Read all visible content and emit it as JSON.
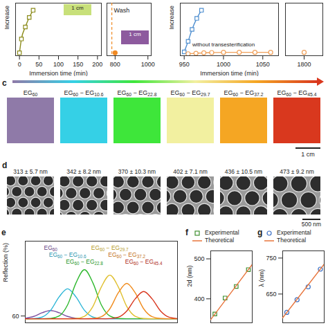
{
  "chart_data": [
    {
      "type": "line",
      "marker": "square",
      "color": "#8c8c1c",
      "ylabel": "Increase",
      "xlabel": "Immersion time (min)",
      "x": [
        0,
        5,
        15,
        25,
        35
      ],
      "values": [
        0.06,
        0.35,
        0.6,
        0.8,
        0.95
      ],
      "xlim": [
        -10,
        210
      ],
      "xticks": [
        0,
        50,
        100,
        150,
        200
      ],
      "ylim": [
        0,
        1.1
      ],
      "tick_labels": "x",
      "annotations": [
        "1 cm"
      ]
    },
    {
      "type": "scatter",
      "marker": "circle",
      "color": "#f08a24",
      "x": [
        800
      ],
      "values": [
        0.06
      ],
      "xlim": [
        750,
        1020
      ],
      "xticks": [
        800,
        1000
      ],
      "ylim": [
        0,
        1.1
      ],
      "tick_labels": "x",
      "wash": {
        "x": 780,
        "label": "Wash"
      },
      "annotations": [
        "1 cm"
      ]
    },
    {
      "type": "line",
      "ylabel": "Increase",
      "xlabel": "Immersion time (min)",
      "xlim": [
        945,
        1070
      ],
      "xticks": [
        950,
        1000,
        1050
      ],
      "ylim": [
        0,
        1.1
      ],
      "tick_labels": "x",
      "series": [
        {
          "color": "#4f8fd0",
          "marker": "square",
          "x": [
            950,
            955,
            960,
            966,
            972
          ],
          "values": [
            0.08,
            0.3,
            0.55,
            0.78,
            0.95
          ]
        },
        {
          "name": "without transesterification",
          "color": "#f0a05a",
          "marker": "circle",
          "x": [
            955,
            965,
            975,
            985,
            1000,
            1020,
            1040,
            1060
          ],
          "values": [
            0.04,
            0.05,
            0.06,
            0.065,
            0.07,
            0.07,
            0.07,
            0.07
          ]
        }
      ]
    },
    {
      "type": "scatter",
      "marker": "circle",
      "color": "#f0a05a",
      "x": [
        1800
      ],
      "values": [
        0.07
      ],
      "xlim": [
        1760,
        1840
      ],
      "xticks": [
        1800
      ],
      "ylim": [
        0,
        1.1
      ],
      "tick_labels": "x"
    },
    {
      "panel": "e",
      "type": "line",
      "ylabel": "Reflection (%)",
      "xlim": [
        380,
        740
      ],
      "ylim": [
        55,
        115
      ],
      "yticks": [
        60
      ],
      "tick_labels": "y",
      "x": [
        380,
        400,
        420,
        440,
        460,
        480,
        500,
        520,
        540,
        560,
        580,
        600,
        620,
        640,
        660,
        680,
        700,
        720,
        740
      ],
      "series": [
        {
          "name": "EG60",
          "color": "#7b4fa0",
          "values": [
            58.3,
            59.7,
            62.4,
            64,
            62.4,
            59.7,
            58.3,
            58,
            58,
            58,
            58,
            58,
            58,
            58,
            58,
            58,
            58,
            58,
            58
          ]
        },
        {
          "name": "EG60 − EG10.6",
          "color": "#2bb5d6",
          "values": [
            58,
            58.1,
            59.2,
            64.2,
            74,
            80,
            74,
            64.2,
            59.2,
            58.1,
            58,
            58,
            58,
            58,
            58,
            58,
            58,
            58,
            58
          ]
        },
        {
          "name": "EG60 − EG22.8",
          "color": "#2eb82e",
          "values": [
            58,
            58,
            58,
            58.2,
            60,
            68.1,
            84.3,
            94,
            84.3,
            68.1,
            60,
            58.2,
            58,
            58,
            58,
            58,
            58,
            58,
            58
          ]
        },
        {
          "name": "EG60 − EG29.7",
          "color": "#e0c030",
          "values": [
            58,
            58,
            58,
            58,
            58,
            58,
            58.2,
            59.8,
            67,
            81.4,
            90,
            81.4,
            67,
            59.8,
            58.2,
            58,
            58,
            58,
            58
          ]
        },
        {
          "name": "EG60 − EG37.2",
          "color": "#f08c1e",
          "values": [
            58,
            58,
            58,
            58,
            58,
            58,
            58,
            58,
            58.2,
            59.5,
            65.3,
            77,
            84,
            77,
            65.3,
            59.5,
            58.2,
            58,
            58
          ]
        },
        {
          "name": "EG60 − EG45.4",
          "color": "#d8341c",
          "values": [
            58,
            58,
            58,
            58,
            58,
            58,
            58,
            58,
            58,
            58,
            58.1,
            59.1,
            63.6,
            72.6,
            78,
            72.6,
            63.6,
            59.1,
            58.1
          ]
        }
      ]
    },
    {
      "panel": "f",
      "type": "scatter",
      "ylabel": "2d (nm)",
      "xlim": [
        20,
        48
      ],
      "ylim": [
        340,
        520
      ],
      "yticks": [
        400,
        500
      ],
      "tick_labels": "y",
      "legend": "top",
      "series": [
        {
          "name": "Experimental",
          "type": "scatter",
          "marker": "square",
          "color": "#3f8f2f",
          "x": [
            22.8,
            29.7,
            37.2,
            45.4
          ],
          "values": [
            362,
            402,
            431,
            473
          ]
        },
        {
          "name": "Theoretical",
          "type": "line",
          "color": "#e8743b",
          "x": [
            20,
            48
          ],
          "values": [
            348,
            486
          ]
        }
      ]
    },
    {
      "panel": "g",
      "type": "scatter",
      "ylabel": "λ (nm)",
      "xlim": [
        20,
        48
      ],
      "ylim": [
        570,
        770
      ],
      "yticks": [
        650,
        750
      ],
      "tick_labels": "y",
      "legend": "top",
      "series": [
        {
          "name": "Experimental",
          "type": "scatter",
          "marker": "circle",
          "color": "#3a6fc4",
          "x": [
            22.8,
            29.7,
            37.2,
            45.4
          ],
          "values": [
            599,
            634,
            670,
            719
          ]
        },
        {
          "name": "Theoretical",
          "type": "line",
          "color": "#e8743b",
          "x": [
            20,
            48
          ],
          "values": [
            584,
            733
          ]
        }
      ]
    }
  ],
  "color_strip": {
    "panel": "c",
    "labels": [
      "EG60",
      "EG60 − EG10.6",
      "EG60 − EG22.8",
      "EG60 − EG29.7",
      "EG60 − EG37.2",
      "EG60 − EG45.4"
    ],
    "colors": [
      "#8f7aa8",
      "#35d0e6",
      "#3ee63a",
      "#f2f0a0",
      "#f5a623",
      "#d9381e"
    ],
    "scale_bar": "1 cm"
  },
  "sem_images": {
    "panel": "d",
    "values": [
      313,
      342,
      370,
      402,
      436,
      473
    ],
    "value_labels": [
      "313 ± 5.7 nm",
      "342 ± 8.2 nm",
      "370 ± 10.3 nm",
      "402 ± 7.1 nm",
      "436 ± 10.5 nm",
      "473 ± 9.2 nm"
    ],
    "scale_bar": {
      "value": 500,
      "label": "500 nm"
    }
  }
}
